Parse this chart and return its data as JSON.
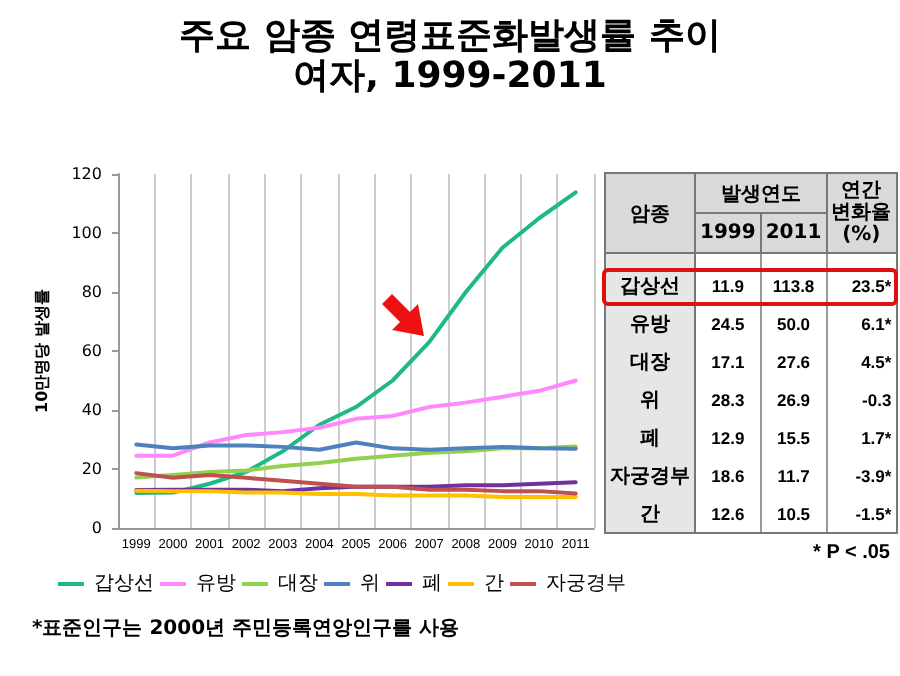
{
  "chart_data": [
    {
      "type": "line",
      "title": "주요 암종 연령표준화발생률 추이",
      "subtitle": "여자, 1999-2011",
      "ylabel": "10만명당 발생률",
      "categories": [
        "1999",
        "2000",
        "2001",
        "2002",
        "2003",
        "2004",
        "2005",
        "2006",
        "2007",
        "2008",
        "2009",
        "2010",
        "2011"
      ],
      "ylim": [
        0,
        120
      ],
      "yticks": [
        0,
        20,
        40,
        60,
        80,
        100,
        120
      ],
      "grid": "x",
      "legend": "bottom",
      "marker": "none",
      "line_style": "solid",
      "series": [
        {
          "name": "갑상선",
          "color": "#1fb888",
          "values": [
            11.9,
            12,
            15,
            19,
            26,
            35,
            41,
            50,
            63,
            80,
            95,
            105,
            113.8
          ]
        },
        {
          "name": "유방",
          "color": "#ff88ff",
          "values": [
            24.5,
            24.5,
            29,
            31.5,
            32.5,
            34,
            37,
            38,
            41,
            42.5,
            44.5,
            46.5,
            50.0
          ]
        },
        {
          "name": "대장",
          "color": "#92d050",
          "values": [
            17.1,
            18,
            19,
            19.5,
            21,
            22,
            23.5,
            24.5,
            25.5,
            26,
            27,
            27,
            27.6
          ]
        },
        {
          "name": "위",
          "color": "#4f81bd",
          "values": [
            28.3,
            27,
            28,
            28,
            27.5,
            26.5,
            29,
            27,
            26.5,
            27,
            27.5,
            27,
            26.9
          ]
        },
        {
          "name": "폐",
          "color": "#7030a0",
          "values": [
            12.9,
            13,
            13,
            13,
            12.5,
            13.5,
            14,
            14,
            14,
            14.5,
            14.5,
            15,
            15.5
          ]
        },
        {
          "name": "간",
          "color": "#ffc000",
          "values": [
            12.6,
            12.5,
            12.5,
            12,
            12,
            11.5,
            11.5,
            11,
            11,
            11,
            10.5,
            10.5,
            10.5
          ]
        },
        {
          "name": "자궁경부",
          "color": "#c0504d",
          "values": [
            18.6,
            17,
            18,
            17,
            16,
            15,
            14,
            14,
            13,
            13,
            12.5,
            12.5,
            11.7
          ]
        }
      ],
      "annotations": [
        "*표준인구는 2000년 주민등록연앙인구를 사용"
      ]
    },
    {
      "type": "other",
      "ylabel": "암종",
      "legend_title": "발생연도",
      "categories": [
        "갑상선",
        "유방",
        "대장",
        "위",
        "폐",
        "자궁경부",
        "간"
      ],
      "series": [
        {
          "name": "1999",
          "values": [
            11.9,
            24.5,
            17.1,
            28.3,
            12.9,
            18.6,
            12.6
          ],
          "value_labels": [
            "11.9",
            "24.5",
            "17.1",
            "28.3",
            "12.9",
            "18.6",
            "12.6"
          ]
        },
        {
          "name": "2011",
          "values": [
            113.8,
            50.0,
            27.6,
            26.9,
            15.5,
            11.7,
            10.5
          ],
          "value_labels": [
            "113.8",
            "50.0",
            "27.6",
            "26.9",
            "15.5",
            "11.7",
            "10.5"
          ]
        },
        {
          "name": "연간 변화율 (%)",
          "values": [
            23.5,
            6.1,
            4.5,
            -0.3,
            1.7,
            -3.9,
            -1.5
          ],
          "value_labels": [
            "23.5*",
            "6.1*",
            "4.5*",
            "-0.3",
            "1.7*",
            "-3.9*",
            "-1.5*"
          ]
        }
      ],
      "annotations": [
        "* P < .05"
      ]
    }
  ]
}
